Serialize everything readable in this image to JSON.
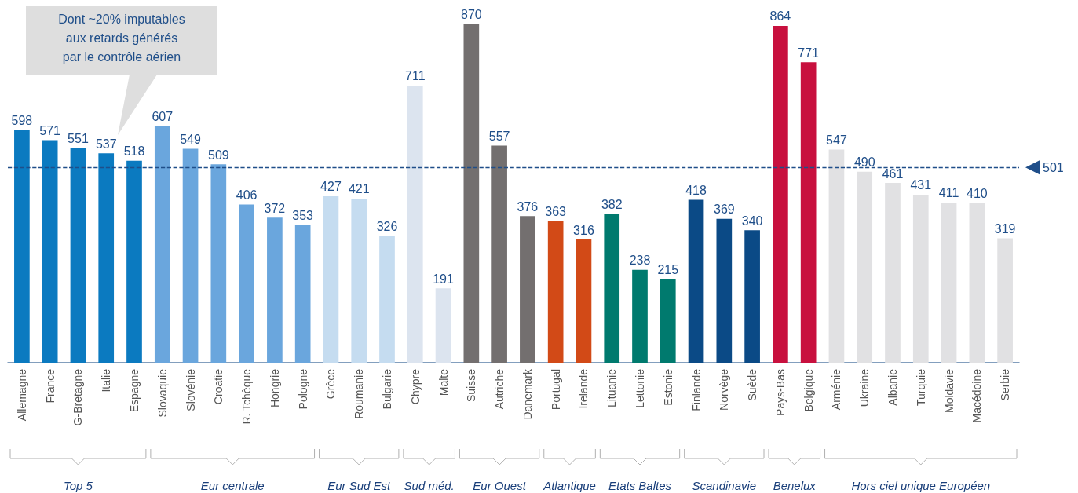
{
  "chart_data": {
    "type": "bar",
    "data_labels": true,
    "categories": [
      "Allemagne",
      "France",
      "G-Bretagne",
      "Italie",
      "Espagne",
      "Slovaquie",
      "Slovénie",
      "Croatie",
      "R. Tchèque",
      "Hongrie",
      "Pologne",
      "Grèce",
      "Roumanie",
      "Bulgarie",
      "Chypre",
      "Malte",
      "Suisse",
      "Autriche",
      "Danemark",
      "Portugal",
      "Irelande",
      "Lituanie",
      "Lettonie",
      "Estonie",
      "Finlande",
      "Norvège",
      "Suède",
      "Pays-Bas",
      "Belgique",
      "Arménie",
      "Ukraine",
      "Albanie",
      "Turquie",
      "Moldavie",
      "Macédoine",
      "Serbie"
    ],
    "values": [
      598,
      571,
      551,
      537,
      518,
      607,
      549,
      509,
      406,
      372,
      353,
      427,
      421,
      326,
      711,
      191,
      870,
      557,
      376,
      363,
      316,
      382,
      238,
      215,
      418,
      369,
      340,
      864,
      771,
      547,
      490,
      461,
      431,
      411,
      410,
      319
    ],
    "colors": [
      "#0b7ac0",
      "#0b7ac0",
      "#0b7ac0",
      "#0b7ac0",
      "#0b7ac0",
      "#6aa6dd",
      "#6aa6dd",
      "#6aa6dd",
      "#6aa6dd",
      "#6aa6dd",
      "#6aa6dd",
      "#c5dcf0",
      "#c5dcf0",
      "#c5dcf0",
      "#dce4ef",
      "#dce4ef",
      "#736f6f",
      "#736f6f",
      "#736f6f",
      "#d24a17",
      "#d24a17",
      "#007a6e",
      "#007a6e",
      "#007a6e",
      "#0b4a86",
      "#0b4a86",
      "#0b4a86",
      "#c8103e",
      "#c8103e",
      "#e1e1e3",
      "#e1e1e3",
      "#e1e1e3",
      "#e1e1e3",
      "#e1e1e3",
      "#e1e1e3",
      "#e1e1e3"
    ],
    "ref_lines": [
      {
        "axis": "y",
        "value": 501,
        "label": "501",
        "color": "#1f4e89",
        "line_style": "dashed"
      }
    ],
    "annotations": [
      "Dont ~20% imputables\naux retards générés\npar le contrôle aérien",
      "Top 5",
      "Eur centrale",
      "Eur Sud Est",
      "Sud méd.",
      "Eur Ouest",
      "Atlantique",
      "Etats Baltes",
      "Scandinavie",
      "Benelux",
      "Hors ciel unique Européen"
    ]
  }
}
